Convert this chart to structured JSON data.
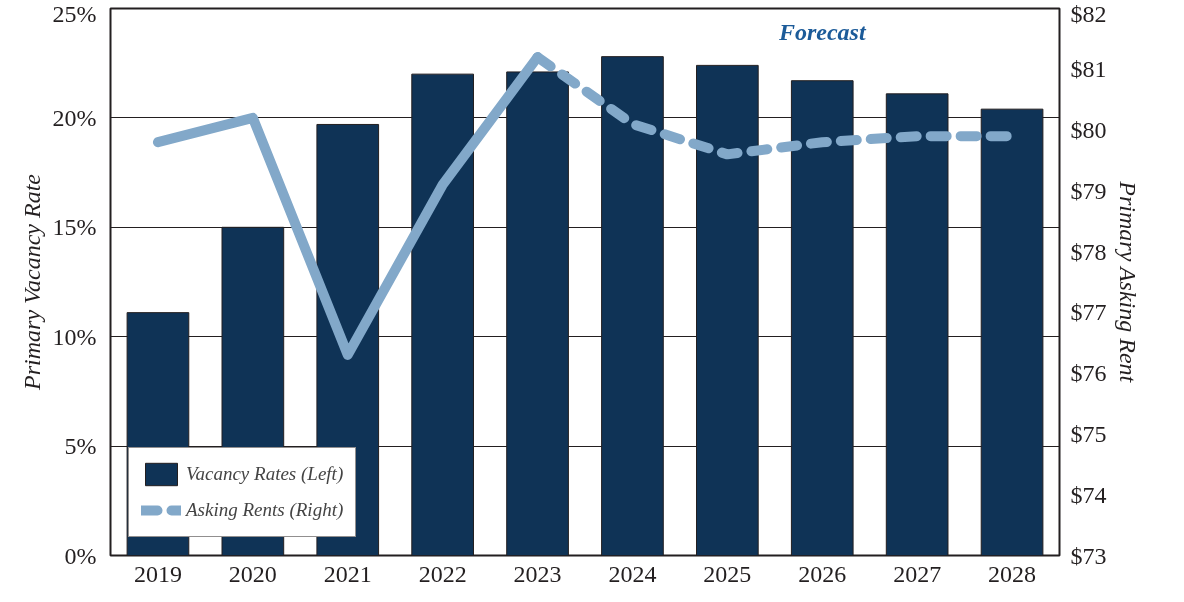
{
  "chart_data": {
    "type": "bar",
    "categories": [
      "2019",
      "2020",
      "2021",
      "2022",
      "2023",
      "2024",
      "2025",
      "2026",
      "2027",
      "2028"
    ],
    "ylabel": "Primary Vacancy Rate",
    "y2label": "Primary Asking Rent",
    "series": [
      {
        "name": "Vacancy Rates (Left)",
        "color": "#0f3356",
        "values": [
          11.1,
          15.0,
          19.7,
          22.0,
          22.1,
          22.8,
          22.4,
          21.7,
          21.1,
          20.4
        ]
      },
      {
        "type": "line",
        "axis": "y2",
        "line_style": "solid",
        "color": "#82a8c9",
        "values": [
          79.8,
          80.2,
          76.3,
          79.1,
          81.2,
          null,
          null,
          null,
          null,
          null
        ]
      },
      {
        "name": "Asking Rents (Right)",
        "type": "line",
        "axis": "y2",
        "line_style": "dashed",
        "color": "#82a8c9",
        "values": [
          null,
          null,
          null,
          null,
          81.2,
          80.1,
          79.6,
          79.8,
          79.9,
          79.9
        ]
      }
    ],
    "ylim": [
      0,
      25
    ],
    "yticks": [
      {
        "value": 0,
        "label": "0%"
      },
      {
        "value": 5,
        "label": "5%"
      },
      {
        "value": 10,
        "label": "10%"
      },
      {
        "value": 15,
        "label": "15%"
      },
      {
        "value": 20,
        "label": "20%"
      },
      {
        "value": 25,
        "label": "25%"
      }
    ],
    "y2lim": [
      73,
      82
    ],
    "y2ticks": [
      {
        "value": 73,
        "label": "$73"
      },
      {
        "value": 74,
        "label": "$74"
      },
      {
        "value": 75,
        "label": "$75"
      },
      {
        "value": 76,
        "label": "$76"
      },
      {
        "value": 77,
        "label": "$77"
      },
      {
        "value": 78,
        "label": "$78"
      },
      {
        "value": 79,
        "label": "$79"
      },
      {
        "value": 80,
        "label": "$80"
      },
      {
        "value": 81,
        "label": "$81"
      },
      {
        "value": 82,
        "label": "$82"
      }
    ],
    "annotations": [
      "Forecast"
    ],
    "grid": "y",
    "legend": "bottom left",
    "marker": "none"
  }
}
